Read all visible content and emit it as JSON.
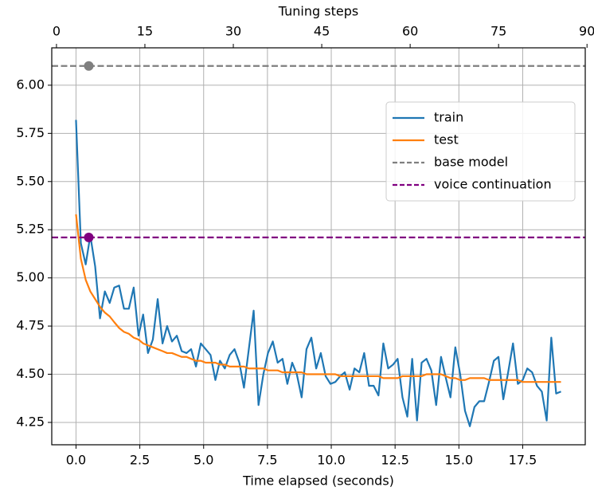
{
  "chart_data": {
    "type": "line",
    "xlabel": "Time elapsed (seconds)",
    "x2label": "Tuning steps",
    "x": [
      0,
      0.19,
      0.38,
      0.56,
      0.75,
      0.94,
      1.13,
      1.32,
      1.5,
      1.69,
      1.88,
      2.07,
      2.26,
      2.45,
      2.63,
      2.82,
      3.01,
      3.2,
      3.39,
      3.57,
      3.76,
      3.95,
      4.14,
      4.33,
      4.51,
      4.7,
      4.89,
      5.08,
      5.27,
      5.46,
      5.64,
      5.83,
      6.02,
      6.21,
      6.4,
      6.58,
      6.77,
      6.96,
      7.15,
      7.34,
      7.52,
      7.71,
      7.9,
      8.09,
      8.28,
      8.47,
      8.65,
      8.84,
      9.03,
      9.22,
      9.41,
      9.59,
      9.78,
      9.97,
      10.16,
      10.35,
      10.53,
      10.72,
      10.91,
      11.1,
      11.29,
      11.48,
      11.66,
      11.85,
      12.04,
      12.23,
      12.42,
      12.6,
      12.79,
      12.98,
      13.17,
      13.36,
      13.54,
      13.73,
      13.92,
      14.11,
      14.3,
      14.49,
      14.67,
      14.86,
      15.05,
      15.24,
      15.43,
      15.61,
      15.8,
      15.99,
      16.18,
      16.37,
      16.55,
      16.74,
      16.93,
      17.12,
      17.31,
      17.5,
      17.68,
      17.87,
      18.06,
      18.25,
      18.44,
      18.62,
      18.81,
      19.0
    ],
    "series": [
      {
        "name": "train",
        "color": "#1f77b4",
        "values": [
          5.82,
          5.18,
          5.07,
          5.22,
          5.06,
          4.79,
          4.93,
          4.87,
          4.95,
          4.96,
          4.84,
          4.84,
          4.95,
          4.7,
          4.81,
          4.61,
          4.68,
          4.89,
          4.66,
          4.75,
          4.67,
          4.7,
          4.62,
          4.61,
          4.63,
          4.54,
          4.66,
          4.63,
          4.6,
          4.47,
          4.57,
          4.53,
          4.6,
          4.63,
          4.56,
          4.43,
          4.63,
          4.83,
          4.34,
          4.5,
          4.61,
          4.67,
          4.56,
          4.58,
          4.45,
          4.56,
          4.5,
          4.38,
          4.63,
          4.69,
          4.53,
          4.61,
          4.49,
          4.45,
          4.46,
          4.49,
          4.51,
          4.42,
          4.53,
          4.51,
          4.61,
          4.44,
          4.44,
          4.39,
          4.66,
          4.53,
          4.55,
          4.58,
          4.38,
          4.28,
          4.58,
          4.26,
          4.56,
          4.58,
          4.52,
          4.34,
          4.59,
          4.48,
          4.38,
          4.64,
          4.5,
          4.31,
          4.23,
          4.33,
          4.36,
          4.36,
          4.46,
          4.57,
          4.59,
          4.37,
          4.51,
          4.66,
          4.45,
          4.47,
          4.53,
          4.51,
          4.44,
          4.41,
          4.26,
          4.69,
          4.4,
          4.41
        ]
      },
      {
        "name": "test",
        "color": "#ff7f0e",
        "values": [
          5.33,
          5.1,
          4.99,
          4.93,
          4.89,
          4.85,
          4.82,
          4.8,
          4.77,
          4.74,
          4.72,
          4.71,
          4.69,
          4.68,
          4.66,
          4.65,
          4.64,
          4.63,
          4.62,
          4.61,
          4.61,
          4.6,
          4.59,
          4.59,
          4.58,
          4.57,
          4.57,
          4.56,
          4.56,
          4.56,
          4.55,
          4.55,
          4.54,
          4.54,
          4.54,
          4.54,
          4.53,
          4.53,
          4.53,
          4.53,
          4.52,
          4.52,
          4.52,
          4.51,
          4.51,
          4.51,
          4.51,
          4.51,
          4.5,
          4.5,
          4.5,
          4.5,
          4.5,
          4.5,
          4.5,
          4.49,
          4.49,
          4.49,
          4.49,
          4.49,
          4.49,
          4.49,
          4.49,
          4.49,
          4.48,
          4.48,
          4.48,
          4.48,
          4.49,
          4.49,
          4.49,
          4.49,
          4.49,
          4.5,
          4.5,
          4.5,
          4.5,
          4.49,
          4.48,
          4.48,
          4.47,
          4.47,
          4.48,
          4.48,
          4.48,
          4.48,
          4.47,
          4.47,
          4.47,
          4.47,
          4.47,
          4.47,
          4.47,
          4.46,
          4.46,
          4.46,
          4.46,
          4.46,
          4.46,
          4.46,
          4.46,
          4.46
        ]
      }
    ],
    "hlines": [
      {
        "name": "base model",
        "color": "#7f7f7f",
        "y": 6.1,
        "marker_x": 0.5
      },
      {
        "name": "voice continuation",
        "color": "#800080",
        "y": 5.21,
        "marker_x": 0.5
      }
    ],
    "xlim": [
      -0.95,
      19.95
    ],
    "xticks": [
      {
        "value": 0,
        "label": "0.0"
      },
      2.5,
      {
        "value": 5,
        "label": "5.0"
      },
      7.5,
      {
        "value": 10,
        "label": "10.0"
      },
      12.5,
      {
        "value": 15,
        "label": "15.0"
      },
      17.5
    ],
    "x2lim": [
      -0.8,
      89.7
    ],
    "x2ticks": [
      0,
      15,
      30,
      45,
      60,
      75,
      90
    ],
    "ylim": [
      4.134,
      6.194
    ],
    "yticks": [
      4.25,
      {
        "value": 4.5,
        "label": "4.50"
      },
      4.75,
      {
        "value": 5,
        "label": "5.00"
      },
      5.25,
      {
        "value": 5.5,
        "label": "5.50"
      },
      5.75,
      {
        "value": 6,
        "label": "6.00"
      }
    ],
    "grid": true,
    "legend": "upper right"
  }
}
